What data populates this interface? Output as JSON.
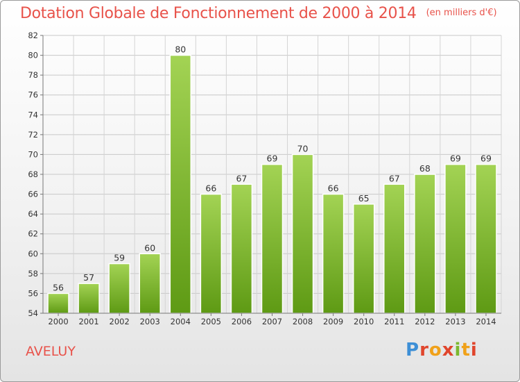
{
  "header": {
    "title": "Dotation Globale de Fonctionnement de 2000 à 2014",
    "unit": "(en milliers d'€)"
  },
  "footer": {
    "commune": "AVELUY",
    "logo_letters": [
      "P",
      "r",
      "o",
      "x",
      "i",
      "t",
      "i"
    ]
  },
  "colors": {
    "title": "#e8524a",
    "bar_light": "#a3d354",
    "bar_dark": "#5e9a14",
    "grid": "#c8c8c8"
  },
  "chart_data": {
    "type": "bar",
    "title": "Dotation Globale de Fonctionnement de 2000 à 2014",
    "subtitle": "(en milliers d'€)",
    "xlabel": "",
    "ylabel": "",
    "categories": [
      "2000",
      "2001",
      "2002",
      "2003",
      "2004",
      "2005",
      "2006",
      "2007",
      "2008",
      "2009",
      "2010",
      "2011",
      "2012",
      "2013",
      "2014"
    ],
    "values": [
      56,
      57,
      59,
      60,
      80,
      66,
      67,
      69,
      70,
      66,
      65,
      67,
      68,
      69,
      69
    ],
    "ylim": [
      54,
      82
    ],
    "yticks": [
      54,
      56,
      58,
      60,
      62,
      64,
      66,
      68,
      70,
      72,
      74,
      76,
      78,
      80,
      82
    ],
    "grid": true,
    "legend": "none"
  }
}
